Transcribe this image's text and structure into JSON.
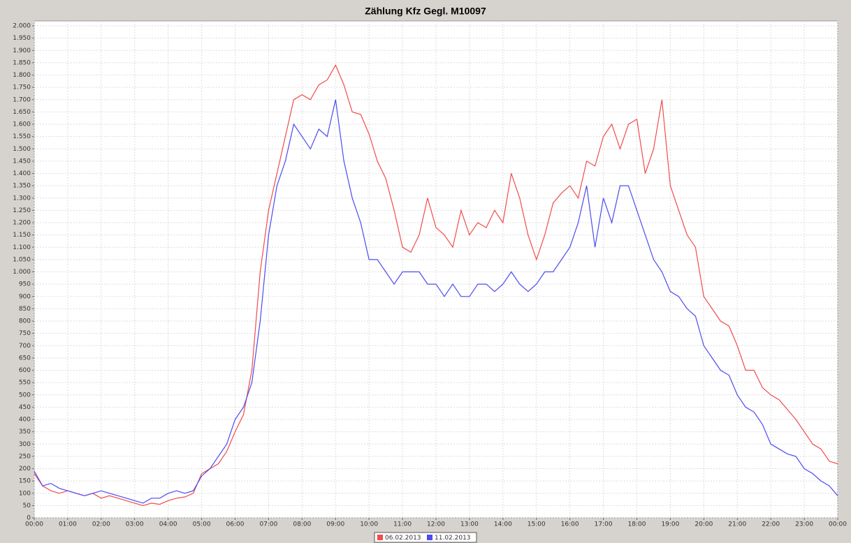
{
  "chart_data": {
    "type": "line",
    "title": "Zählung Kfz Gegl. M10097",
    "categories": [
      "00:00",
      null,
      null,
      null,
      "01:00",
      null,
      null,
      null,
      "02:00",
      null,
      null,
      null,
      "03:00",
      null,
      null,
      null,
      "04:00",
      null,
      null,
      null,
      "05:00",
      null,
      null,
      null,
      "06:00",
      null,
      null,
      null,
      "07:00",
      null,
      null,
      null,
      "08:00",
      null,
      null,
      null,
      "09:00",
      null,
      null,
      null,
      "10:00",
      null,
      null,
      null,
      "11:00",
      null,
      null,
      null,
      "12:00",
      null,
      null,
      null,
      "13:00",
      null,
      null,
      null,
      "14:00",
      null,
      null,
      null,
      "15:00",
      null,
      null,
      null,
      "16:00",
      null,
      null,
      null,
      "17:00",
      null,
      null,
      null,
      "18:00",
      null,
      null,
      null,
      "19:00",
      null,
      null,
      null,
      "20:00",
      null,
      null,
      null,
      "21:00",
      null,
      null,
      null,
      "22:00",
      null,
      null,
      null,
      "23:00",
      null,
      null,
      null,
      "00:00"
    ],
    "series": [
      {
        "name": "06.02.2013",
        "color": "#f24b4b",
        "values": [
          180,
          130,
          110,
          100,
          110,
          100,
          90,
          100,
          80,
          90,
          80,
          70,
          60,
          50,
          60,
          55,
          70,
          80,
          85,
          100,
          180,
          200,
          220,
          270,
          350,
          420,
          600,
          1000,
          1250,
          1400,
          1550,
          1700,
          1720,
          1700,
          1760,
          1780,
          1840,
          1760,
          1650,
          1640,
          1560,
          1450,
          1380,
          1250,
          1100,
          1080,
          1150,
          1300,
          1180,
          1150,
          1100,
          1250,
          1150,
          1200,
          1180,
          1250,
          1200,
          1400,
          1300,
          1150,
          1050,
          1150,
          1280,
          1320,
          1350,
          1300,
          1450,
          1430,
          1550,
          1600,
          1500,
          1600,
          1620,
          1400,
          1500,
          1700,
          1350,
          1250,
          1150,
          1100,
          900,
          850,
          800,
          780,
          700,
          600,
          600,
          530,
          500,
          480,
          440,
          400,
          350,
          300,
          280,
          230,
          220
        ]
      },
      {
        "name": "11.02.2013",
        "color": "#4b4bf2",
        "values": [
          190,
          130,
          140,
          120,
          110,
          100,
          90,
          100,
          110,
          100,
          90,
          80,
          70,
          60,
          80,
          80,
          100,
          110,
          100,
          110,
          170,
          200,
          250,
          300,
          400,
          450,
          550,
          800,
          1150,
          1350,
          1450,
          1600,
          1550,
          1500,
          1580,
          1550,
          1700,
          1450,
          1300,
          1200,
          1050,
          1050,
          1000,
          950,
          1000,
          1000,
          1000,
          950,
          950,
          900,
          950,
          900,
          900,
          950,
          950,
          920,
          950,
          1000,
          950,
          920,
          950,
          1000,
          1000,
          1050,
          1100,
          1200,
          1350,
          1100,
          1300,
          1200,
          1350,
          1350,
          1250,
          1150,
          1050,
          1000,
          920,
          900,
          850,
          820,
          700,
          650,
          600,
          580,
          500,
          450,
          430,
          380,
          300,
          280,
          260,
          250,
          200,
          180,
          150,
          130,
          90
        ]
      }
    ],
    "ylim": [
      0,
      2000
    ],
    "yticks": [
      0,
      50,
      100,
      150,
      200,
      250,
      300,
      350,
      400,
      450,
      500,
      550,
      600,
      650,
      700,
      750,
      800,
      850,
      900,
      950,
      {
        "value": 1000,
        "label": "1.000"
      },
      {
        "value": 1050,
        "label": "1.050"
      },
      {
        "value": 1100,
        "label": "1.100"
      },
      {
        "value": 1150,
        "label": "1.150"
      },
      {
        "value": 1200,
        "label": "1.200"
      },
      {
        "value": 1250,
        "label": "1.250"
      },
      {
        "value": 1300,
        "label": "1.300"
      },
      {
        "value": 1350,
        "label": "1.350"
      },
      {
        "value": 1400,
        "label": "1.400"
      },
      {
        "value": 1450,
        "label": "1.450"
      },
      {
        "value": 1500,
        "label": "1.500"
      },
      {
        "value": 1550,
        "label": "1.550"
      },
      {
        "value": 1600,
        "label": "1.600"
      },
      {
        "value": 1650,
        "label": "1.650"
      },
      {
        "value": 1700,
        "label": "1.700"
      },
      {
        "value": 1750,
        "label": "1.750"
      },
      {
        "value": 1800,
        "label": "1.800"
      },
      {
        "value": 1850,
        "label": "1.850"
      },
      {
        "value": 1900,
        "label": "1.900"
      },
      {
        "value": 1950,
        "label": "1.950"
      },
      {
        "value": 2000,
        "label": "2.000"
      }
    ],
    "grid": true,
    "legend": "bottom"
  }
}
